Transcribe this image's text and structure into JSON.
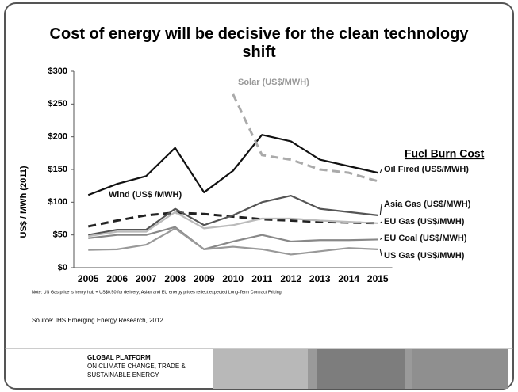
{
  "chart_data": {
    "type": "line",
    "title": "Cost of energy will be decisive for the clean technology shift",
    "ylabel": "US$ / MWh (2011)",
    "annotation": "Fuel Burn Cost",
    "note": "Note: US Gas price is henry hub + US$0.50 for delivery; Asian and EU energy prices reflect expected Long-Term Contract Pricing.",
    "source": "Source: IHS Emerging Energy Research, 2012",
    "categories": [
      "2005",
      "2006",
      "2007",
      "2008",
      "2009",
      "2010",
      "2011",
      "2012",
      "2013",
      "2014",
      "2015"
    ],
    "series": [
      {
        "name": "Oil Fired (US$/MWH)",
        "color": "#111111",
        "dashed": false,
        "values": [
          111,
          128,
          140,
          183,
          115,
          148,
          203,
          193,
          165,
          155,
          145
        ]
      },
      {
        "name": "Solar (US$/MWH)",
        "color": "#aaaaaa",
        "dashed": true,
        "values": [
          null,
          null,
          null,
          null,
          null,
          265,
          172,
          165,
          150,
          145,
          132
        ]
      },
      {
        "name": "Wind (US$ /MWH)",
        "color": "#222222",
        "dashed": true,
        "values": [
          63,
          72,
          80,
          84,
          82,
          78,
          74,
          72,
          70,
          69,
          68
        ]
      },
      {
        "name": "Asia Gas (US$/MWH)",
        "color": "#555555",
        "dashed": false,
        "values": [
          50,
          58,
          58,
          90,
          65,
          80,
          100,
          110,
          90,
          85,
          80
        ]
      },
      {
        "name": "EU Gas (US$/MWH)",
        "color": "#bbbbbb",
        "dashed": false,
        "values": [
          48,
          55,
          55,
          85,
          60,
          65,
          75,
          75,
          72,
          70,
          68
        ]
      },
      {
        "name": "EU Coal (US$/MWH)",
        "color": "#888888",
        "dashed": false,
        "values": [
          45,
          50,
          50,
          62,
          28,
          40,
          50,
          40,
          42,
          42,
          43
        ]
      },
      {
        "name": "US Gas (US$/MWH)",
        "color": "#999999",
        "dashed": false,
        "values": [
          27,
          28,
          35,
          60,
          28,
          32,
          28,
          20,
          25,
          30,
          28
        ]
      }
    ],
    "ylim": [
      0,
      300
    ],
    "yticks": [
      {
        "value": 0,
        "label": "$0"
      },
      {
        "value": 50,
        "label": "$50"
      },
      {
        "value": 100,
        "label": "$100"
      },
      {
        "value": 150,
        "label": "$150"
      },
      {
        "value": 200,
        "label": "$200"
      },
      {
        "value": 250,
        "label": "$250"
      },
      {
        "value": 300,
        "label": "$300"
      }
    ],
    "grid": false
  },
  "footer": {
    "lines": [
      "GLOBAL PLATFORM",
      "ON CLIMATE CHANGE, TRADE &",
      "SUSTAINABLE ENERGY"
    ]
  }
}
